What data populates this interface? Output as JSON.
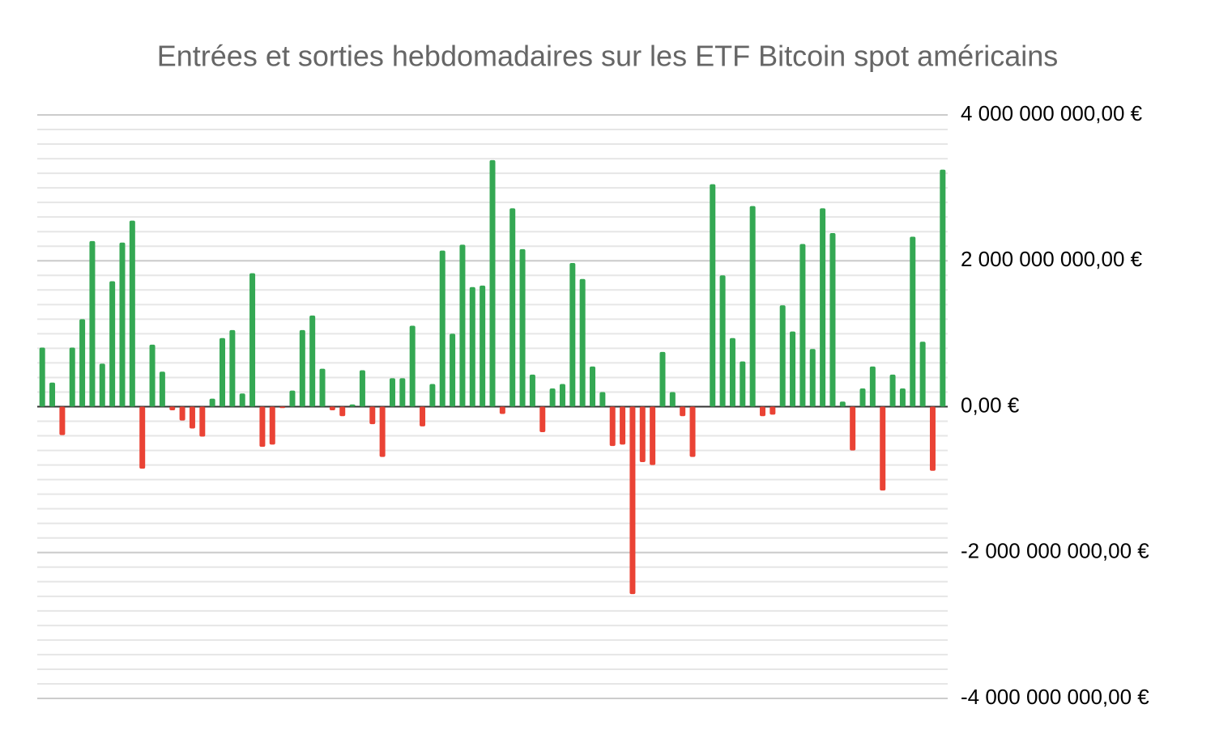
{
  "chart_data": {
    "type": "bar",
    "title": "Entrées et sorties hebdomadaires sur les ETF Bitcoin spot américains",
    "categories": [
      null,
      null,
      null,
      null,
      null,
      null,
      null,
      null,
      null,
      null,
      null,
      null,
      null,
      null,
      null,
      null,
      null,
      null,
      null,
      null,
      null,
      null,
      null,
      null,
      null,
      null,
      null,
      null,
      null,
      null,
      null,
      null,
      null,
      null,
      null,
      null,
      null,
      null,
      null,
      null,
      null,
      null,
      null,
      null,
      null,
      null,
      null,
      null,
      null,
      null,
      null,
      null,
      null,
      null,
      null,
      null,
      null,
      null,
      null,
      null,
      null,
      null,
      null,
      null,
      null,
      null,
      null,
      null,
      null,
      null,
      null,
      null,
      null,
      null,
      null,
      null,
      null,
      null,
      null,
      null,
      null,
      null,
      null,
      null,
      null,
      null,
      null,
      null,
      null,
      null,
      null
    ],
    "values": [
      810000000,
      330000000,
      -390000000,
      810000000,
      1200000000,
      2270000000,
      590000000,
      1720000000,
      2250000000,
      2550000000,
      -850000000,
      850000000,
      480000000,
      -50000000,
      -190000000,
      -300000000,
      -410000000,
      110000000,
      940000000,
      1050000000,
      180000000,
      1830000000,
      -550000000,
      -520000000,
      -20000000,
      220000000,
      1050000000,
      1250000000,
      520000000,
      -50000000,
      -130000000,
      30000000,
      500000000,
      -240000000,
      -690000000,
      390000000,
      390000000,
      1110000000,
      -270000000,
      310000000,
      2140000000,
      1000000000,
      2220000000,
      1640000000,
      1660000000,
      3380000000,
      -100000000,
      2720000000,
      2160000000,
      440000000,
      -350000000,
      250000000,
      310000000,
      1970000000,
      1750000000,
      550000000,
      200000000,
      -540000000,
      -520000000,
      -2570000000,
      -760000000,
      -800000000,
      750000000,
      200000000,
      -130000000,
      -690000000,
      0,
      3050000000,
      1800000000,
      940000000,
      620000000,
      2750000000,
      -130000000,
      -110000000,
      1390000000,
      1030000000,
      2230000000,
      790000000,
      2720000000,
      2380000000,
      70000000,
      -600000000,
      250000000,
      550000000,
      -1150000000,
      440000000,
      250000000,
      2330000000,
      890000000,
      -880000000,
      3250000000
    ],
    "colors": {
      "positive": "#34a853",
      "negative": "#ea4335"
    },
    "ylim": [
      -4000000000,
      4000000000
    ],
    "yticks": [
      {
        "value": -4000000000,
        "label": "-4 000 000 000,00 €"
      },
      {
        "value": -2000000000,
        "label": "-2 000 000 000,00 €"
      },
      {
        "value": 0,
        "label": "0,00 €"
      },
      {
        "value": 2000000000,
        "label": "2 000 000 000,00 €"
      },
      {
        "value": 4000000000,
        "label": "4 000 000 000,00 €"
      }
    ],
    "minor_grid_step": 200000000,
    "axis_side": "right",
    "grid": true
  }
}
